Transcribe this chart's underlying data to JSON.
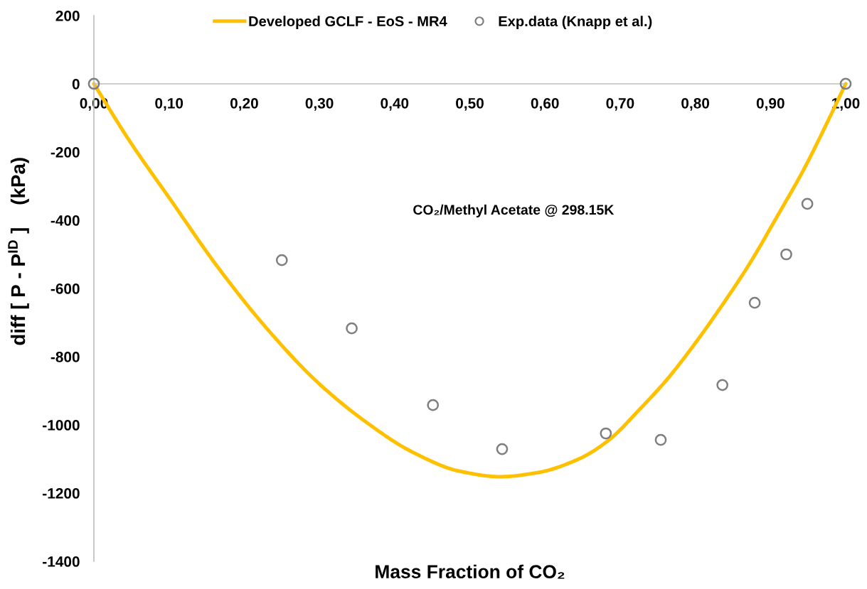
{
  "chart_data": {
    "type": "line",
    "xlabel": "Mass Fraction of CO₂",
    "ylabel": "diff [ P - P$^{ID}$ ]    (kPa)",
    "annotations": [
      "CO₂/Methyl Acetate @ 298.15K"
    ],
    "series": [
      {
        "name": "Developed GCLF - EoS - MR4",
        "color": "#ffc000",
        "line_style": "solid",
        "x": [
          0,
          0.047,
          0.102,
          0.165,
          0.235,
          0.298,
          0.361,
          0.424,
          0.487,
          0.54,
          0.59,
          0.645,
          0.683,
          0.727,
          0.763,
          0.8,
          0.836,
          0.872,
          0.908,
          0.945,
          0.981,
          1.0
        ],
        "values": [
          0,
          -166,
          -340,
          -538,
          -730,
          -876,
          -990,
          -1080,
          -1136,
          -1152,
          -1140,
          -1100,
          -1048,
          -952,
          -865,
          -760,
          -648,
          -528,
          -392,
          -248,
          -88,
          0
        ]
      },
      {
        "name": "Exp.data (Knapp et al.)",
        "type": "scatter",
        "color": "#7f7f7f",
        "marker": "circle",
        "x": [
          0,
          0.25,
          0.343,
          0.451,
          0.543,
          0.681,
          0.754,
          0.836,
          0.879,
          0.921,
          0.949,
          1.0
        ],
        "values": [
          0,
          -517,
          -717,
          -942,
          -1071,
          -1025,
          -1044,
          -883,
          -642,
          -500,
          -352,
          0
        ]
      }
    ],
    "xlim": [
      0,
      1
    ],
    "xticks": [
      {
        "value": 0,
        "label": "0,00"
      },
      {
        "value": 0.1,
        "label": "0,10"
      },
      {
        "value": 0.2,
        "label": "0,20"
      },
      {
        "value": 0.3,
        "label": "0,30"
      },
      {
        "value": 0.4,
        "label": "0,40"
      },
      {
        "value": 0.5,
        "label": "0,50"
      },
      {
        "value": 0.6,
        "label": "0,60"
      },
      {
        "value": 0.7,
        "label": "0,70"
      },
      {
        "value": 0.8,
        "label": "0,80"
      },
      {
        "value": 0.9,
        "label": "0,90"
      },
      {
        "value": 1.0,
        "label": "1,00"
      }
    ],
    "ylim": [
      -1400,
      200
    ],
    "yticks": [
      200,
      0,
      -200,
      -400,
      -600,
      -800,
      -1000,
      -1200,
      -1400
    ],
    "grid": false,
    "legend": "top"
  }
}
